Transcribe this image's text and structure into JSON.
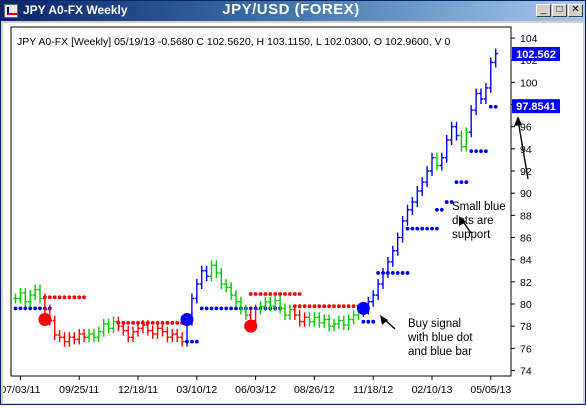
{
  "window": {
    "app_title": "JPY A0-FX Weekly",
    "chart_title": "JPY/USD (FOREX)",
    "buttons": {
      "minimize": "_",
      "maximize": "□",
      "close": "✕"
    }
  },
  "info_line": "JPY A0-FX [Weekly] 05/19/13  -0.5680 C 102.5620, H 103.1150, L 102.0300, O 102.9600, V 0",
  "price_tags": {
    "last": "102.562",
    "support": "97.8541"
  },
  "annotations": {
    "support_note": [
      "Small blue",
      "dots are",
      "support"
    ],
    "buy_note": [
      "Buy signal",
      "with blue dot",
      "and blue bar"
    ]
  },
  "colors": {
    "up": "#00cc00",
    "down": "#ff0000",
    "blue": "#0000ff",
    "tag_bg": "#0000ff",
    "tag_text": "#ffffff"
  },
  "chart_data": {
    "type": "ohlc",
    "y_ticks": [
      74,
      76,
      78,
      80,
      82,
      84,
      86,
      88,
      90,
      92,
      94,
      96,
      98,
      100,
      102,
      104
    ],
    "ylim": [
      73.5,
      105
    ],
    "x_ticks": [
      "07/03/11",
      "09/25/11",
      "12/18/11",
      "03/10/12",
      "06/03/12",
      "08/26/12",
      "11/18/12",
      "02/10/13",
      "05/05/13"
    ],
    "x_tick_index": [
      1,
      13,
      25,
      37,
      49,
      61,
      73,
      85,
      97
    ],
    "bar_count": 99,
    "segments": [
      {
        "color": "green",
        "from": 0,
        "to": 5,
        "prices": [
          80.5,
          81.0,
          80.2,
          80.8,
          81.3,
          80.5
        ]
      },
      {
        "color": "red",
        "from": 6,
        "to": 14,
        "prices": [
          79.5,
          78.5,
          77.2,
          77.0,
          76.6,
          77.0,
          76.8,
          77.3,
          77.0
        ]
      },
      {
        "color": "green",
        "from": 15,
        "to": 20,
        "prices": [
          77.3,
          77.0,
          77.5,
          78.2,
          77.8,
          78.4
        ]
      },
      {
        "color": "red",
        "from": 21,
        "to": 34,
        "prices": [
          78.0,
          77.6,
          77.0,
          77.5,
          77.8,
          78.1,
          77.6,
          77.3,
          77.8,
          77.5,
          77.0,
          77.3,
          77.0,
          76.6
        ]
      },
      {
        "color": "blue",
        "from": 35,
        "to": 39,
        "prices": [
          78.5,
          80.5,
          81.8,
          83.0,
          82.5
        ]
      },
      {
        "color": "green",
        "from": 40,
        "to": 47,
        "prices": [
          83.5,
          82.8,
          81.8,
          81.5,
          80.8,
          80.2,
          79.5,
          79.0
        ]
      },
      {
        "color": "red",
        "from": 48,
        "to": 49,
        "prices": [
          78.5,
          79.5
        ]
      },
      {
        "color": "green",
        "from": 50,
        "to": 56,
        "prices": [
          79.8,
          80.2,
          79.8,
          80.3,
          79.6,
          79.0,
          79.5
        ]
      },
      {
        "color": "red",
        "from": 57,
        "to": 59,
        "prices": [
          79.0,
          78.4,
          78.8
        ]
      },
      {
        "color": "green",
        "from": 60,
        "to": 70,
        "prices": [
          78.4,
          78.8,
          78.3,
          78.6,
          78.0,
          78.2,
          78.5,
          78.1,
          78.6,
          79.0,
          79.3
        ]
      },
      {
        "color": "blue",
        "from": 71,
        "to": 85,
        "prices": [
          79.5,
          80.2,
          80.8,
          81.8,
          82.8,
          83.8,
          84.8,
          86.0,
          87.5,
          88.5,
          89.2,
          90.2,
          91.0,
          92.0,
          93.2
        ]
      },
      {
        "color": "green",
        "from": 86,
        "to": 86,
        "prices": [
          92.5
        ]
      },
      {
        "color": "blue",
        "from": 87,
        "to": 90,
        "prices": [
          93.2,
          94.8,
          96.0,
          95.2
        ]
      },
      {
        "color": "green",
        "from": 91,
        "to": 92,
        "prices": [
          94.2,
          95.5
        ]
      },
      {
        "color": "blue",
        "from": 93,
        "to": 98,
        "prices": [
          97.5,
          99.0,
          98.5,
          99.5,
          101.8,
          102.6
        ]
      }
    ],
    "dot_runs": [
      {
        "color": "blue",
        "from": 0,
        "to": 7,
        "value": 79.6
      },
      {
        "color": "red",
        "from": 6,
        "to": 14,
        "value": 80.6
      },
      {
        "color": "red",
        "from": 21,
        "to": 34,
        "value": 78.3
      },
      {
        "color": "blue",
        "from": 35,
        "to": 37,
        "value": 76.6
      },
      {
        "color": "blue",
        "from": 38,
        "to": 54,
        "value": 79.6
      },
      {
        "color": "red",
        "from": 48,
        "to": 58,
        "value": 80.9
      },
      {
        "color": "red",
        "from": 57,
        "to": 71,
        "value": 79.8
      },
      {
        "color": "blue",
        "from": 71,
        "to": 73,
        "value": 78.4
      },
      {
        "color": "blue",
        "from": 74,
        "to": 80,
        "value": 82.8
      },
      {
        "color": "blue",
        "from": 80,
        "to": 86,
        "value": 86.8
      },
      {
        "color": "blue",
        "from": 86,
        "to": 87,
        "value": 88.5
      },
      {
        "color": "blue",
        "from": 88,
        "to": 89,
        "value": 89.2
      },
      {
        "color": "blue",
        "from": 90,
        "to": 92,
        "value": 91.0
      },
      {
        "color": "blue",
        "from": 93,
        "to": 96,
        "value": 93.8
      },
      {
        "color": "blue",
        "from": 97,
        "to": 98,
        "value": 97.8
      }
    ],
    "signals": [
      {
        "color": "red",
        "index": 6,
        "value": 78.6
      },
      {
        "color": "blue",
        "index": 35,
        "value": 78.6
      },
      {
        "color": "red",
        "index": 48,
        "value": 78.0
      },
      {
        "color": "blue",
        "index": 71,
        "value": 79.6
      }
    ]
  }
}
